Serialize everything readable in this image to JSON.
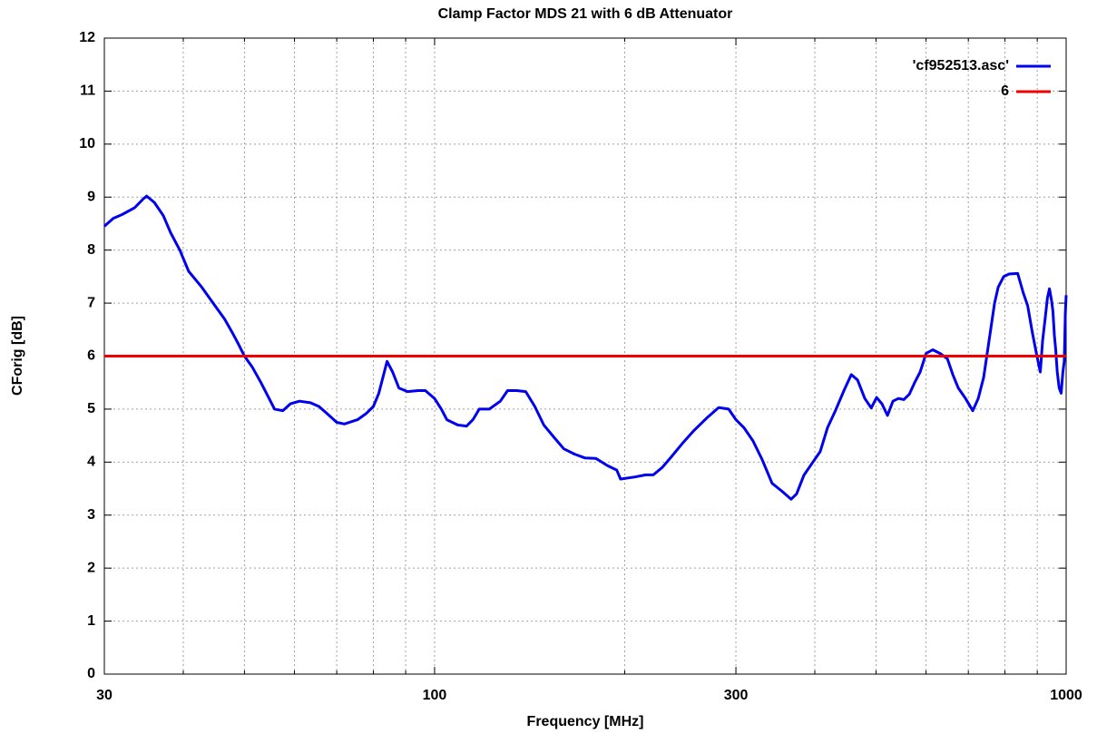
{
  "chart_data": {
    "type": "line",
    "title": "Clamp Factor MDS 21 with 6 dB Attenuator",
    "xlabel": "Frequency [MHz]",
    "ylabel": "CForig [dB]",
    "xscale": "log",
    "xlim": [
      30,
      1000
    ],
    "xticks": [
      30,
      100,
      300,
      1000
    ],
    "xminor": [
      40,
      50,
      60,
      70,
      80,
      90,
      200,
      400,
      500,
      600,
      700,
      800,
      900
    ],
    "ylim": [
      0,
      12
    ],
    "yticks": [
      0,
      1,
      2,
      3,
      4,
      5,
      6,
      7,
      8,
      9,
      10,
      11,
      12
    ],
    "grid": true,
    "legend": "top-right",
    "series": [
      {
        "name": "'cf952513.asc'",
        "color": "#0000ee",
        "x": [
          30,
          31.0,
          32.0,
          33.5,
          34.6,
          35.0,
          36.0,
          37.2,
          38.2,
          39.5,
          40.8,
          42.8,
          44.6,
          46.5,
          47.8,
          48.8,
          50,
          51.4,
          53.1,
          55.8,
          57.5,
          59.1,
          61.1,
          63.6,
          65.6,
          67.8,
          70,
          72.0,
          75.5,
          78.0,
          80,
          81.6,
          84.1,
          85.8,
          87.8,
          90.6,
          94.2,
          96.7,
          100,
          102.5,
          104.6,
          108.8,
          112.4,
          115.0,
          117.7,
          122.1,
          127.1,
          130.5,
          134.9,
          139.4,
          144.1,
          148.9,
          155.0,
          160.2,
          166.7,
          172.9,
          180.0,
          188.0,
          194.3,
          197,
          207.6,
          216.0,
          222.0,
          229.4,
          237.1,
          246.7,
          257.6,
          270.7,
          281.7,
          292.1,
          300,
          308.9,
          319.3,
          330.0,
          342.3,
          355.0,
          366.9,
          374.3,
          384.3,
          397.2,
          408,
          419,
          430.4,
          444.8,
          456.8,
          467.4,
          480,
          491.3,
          501,
          511,
          521.3,
          531.8,
          542.4,
          553.3,
          564.4,
          575.6,
          587.2,
          600,
          615,
          631.6,
          648.5,
          661.5,
          674.7,
          693,
          711.4,
          725.7,
          740.2,
          755.1,
          770.2,
          780.5,
          796.2,
          812.1,
          838,
          855,
          869,
          884,
          899,
          910,
          918,
          926,
          934,
          941,
          948,
          953,
          958,
          963,
          968,
          975,
          982,
          988,
          993,
          997,
          1000
        ],
        "values": [
          8.45,
          8.6,
          8.67,
          8.8,
          8.97,
          9.02,
          8.9,
          8.65,
          8.33,
          8.0,
          7.6,
          7.3,
          7.0,
          6.7,
          6.45,
          6.25,
          6.0,
          5.8,
          5.5,
          5.0,
          4.97,
          5.1,
          5.15,
          5.12,
          5.05,
          4.9,
          4.75,
          4.72,
          4.8,
          4.92,
          5.05,
          5.3,
          5.9,
          5.7,
          5.4,
          5.33,
          5.35,
          5.35,
          5.2,
          5.0,
          4.8,
          4.7,
          4.68,
          4.8,
          5.0,
          5.0,
          5.15,
          5.35,
          5.35,
          5.33,
          5.05,
          4.7,
          4.45,
          4.25,
          4.15,
          4.08,
          4.07,
          3.93,
          3.85,
          3.68,
          3.72,
          3.76,
          3.76,
          3.9,
          4.1,
          4.35,
          4.6,
          4.85,
          5.03,
          5.0,
          4.8,
          4.65,
          4.4,
          4.05,
          3.6,
          3.45,
          3.3,
          3.4,
          3.75,
          4.0,
          4.2,
          4.65,
          4.95,
          5.35,
          5.65,
          5.55,
          5.2,
          5.02,
          5.22,
          5.1,
          4.88,
          5.15,
          5.2,
          5.18,
          5.28,
          5.5,
          5.7,
          6.05,
          6.12,
          6.05,
          5.95,
          5.65,
          5.4,
          5.2,
          4.97,
          5.2,
          5.6,
          6.3,
          7.0,
          7.3,
          7.5,
          7.55,
          7.56,
          7.2,
          6.95,
          6.45,
          6.0,
          5.7,
          6.3,
          6.7,
          7.1,
          7.27,
          7.05,
          6.85,
          6.4,
          6.1,
          5.7,
          5.4,
          5.3,
          5.7,
          5.9,
          6.8,
          7.15
        ]
      },
      {
        "name": "6",
        "color": "#ee0000",
        "x": [
          30,
          1000
        ],
        "values": [
          6,
          6
        ]
      }
    ]
  }
}
